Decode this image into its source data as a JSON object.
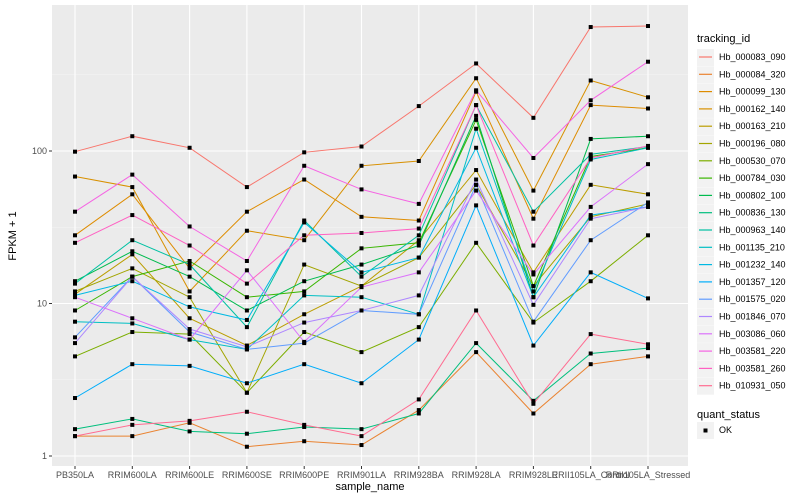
{
  "chart_data": {
    "type": "line",
    "title": "",
    "xlabel": "sample_name",
    "ylabel": "FPKM + 1",
    "yscale": "log10",
    "ylim": [
      0.9,
      800
    ],
    "yticks": [
      1,
      10,
      100
    ],
    "ytick_labels": [
      "1",
      "10",
      "100"
    ],
    "grid": true,
    "legend_position": "right",
    "categories": [
      "PB350LA",
      "RRIM600LA",
      "RRIM600LE",
      "RRIM600SE",
      "RRIM600PE",
      "RRIM901LA",
      "RRIM928BA",
      "RRIM928LA",
      "RRIM928LE",
      "RRII105LA_Control",
      "RRII105LA_Stressed"
    ],
    "legend_title": "tracking_id",
    "legend2_title": "quant_status",
    "legend2_entries": [
      "OK"
    ],
    "series": [
      {
        "name": "Hb_000083_090",
        "color": "#F8766D",
        "values": [
          99,
          125,
          105,
          58,
          98,
          107,
          197,
          375,
          165,
          650,
          660
        ]
      },
      {
        "name": "Hb_000084_320",
        "color": "#EA8331",
        "values": [
          1.35,
          1.35,
          1.65,
          1.15,
          1.25,
          1.18,
          2.0,
          4.8,
          1.9,
          4.0,
          4.5
        ]
      },
      {
        "name": "Hb_000099_130",
        "color": "#DE8C00",
        "values": [
          28,
          52,
          17,
          40,
          65,
          37,
          35,
          245,
          36,
          200,
          190
        ]
      },
      {
        "name": "Hb_000162_140",
        "color": "#D89000",
        "values": [
          68,
          58,
          12,
          30,
          26,
          80,
          86,
          300,
          55,
          290,
          225
        ]
      },
      {
        "name": "Hb_000163_210",
        "color": "#BB9D00",
        "values": [
          11.5,
          21,
          8,
          5.3,
          8.5,
          13,
          26,
          75,
          16,
          60,
          52
        ]
      },
      {
        "name": "Hb_000196_080",
        "color": "#A3A500",
        "values": [
          12,
          17,
          11,
          2.6,
          18,
          13,
          20,
          60,
          13,
          37,
          45
        ]
      },
      {
        "name": "Hb_000530_070",
        "color": "#7CAE00",
        "values": [
          4.5,
          6.5,
          6.3,
          2.6,
          6.5,
          4.8,
          7.0,
          25,
          7.5,
          14,
          28
        ]
      },
      {
        "name": "Hb_000784_030",
        "color": "#39B600",
        "values": [
          9,
          15,
          19,
          11,
          12,
          23,
          25,
          160,
          13,
          92,
          105
        ]
      },
      {
        "name": "Hb_000802_100",
        "color": "#00BB4E",
        "values": [
          14,
          22,
          15,
          9,
          14,
          18,
          24,
          170,
          11,
          120,
          125
        ]
      },
      {
        "name": "Hb_000836_130",
        "color": "#00BF7D",
        "values": [
          1.5,
          1.75,
          1.45,
          1.4,
          1.55,
          1.5,
          1.9,
          5.5,
          2.3,
          4.7,
          5.1
        ]
      },
      {
        "name": "Hb_000963_140",
        "color": "#00C1A3",
        "values": [
          13.5,
          26,
          18,
          7,
          35,
          15,
          28,
          200,
          40,
          95,
          107
        ]
      },
      {
        "name": "Hb_001135_210",
        "color": "#00BFC4",
        "values": [
          7.6,
          7.4,
          5.8,
          5,
          11.3,
          11,
          8.5,
          140,
          12,
          88,
          105
        ]
      },
      {
        "name": "Hb_001232_140",
        "color": "#00B9E3",
        "values": [
          11.3,
          14,
          9.5,
          7.8,
          34,
          16,
          20,
          105,
          11,
          38,
          43
        ]
      },
      {
        "name": "Hb_001357_120",
        "color": "#00ADFA",
        "values": [
          2.4,
          4,
          3.9,
          3,
          4,
          3,
          5.8,
          44,
          5.3,
          16,
          10.8
        ]
      },
      {
        "name": "Hb_001575_020",
        "color": "#619CFF",
        "values": [
          6,
          15,
          6.5,
          5,
          5.5,
          9,
          8.5,
          60,
          7.6,
          26,
          46
        ]
      },
      {
        "name": "Hb_001846_070",
        "color": "#AE87FF",
        "values": [
          5.5,
          15,
          6.8,
          5.2,
          7.5,
          9,
          11.3,
          65,
          9.8,
          36,
          43
        ]
      },
      {
        "name": "Hb_003086_060",
        "color": "#DB72FB",
        "values": [
          11,
          8,
          5.8,
          16.5,
          5.6,
          12.8,
          16,
          55,
          15.5,
          43,
          82
        ]
      },
      {
        "name": "Hb_003581_220",
        "color": "#F564E3",
        "values": [
          40,
          70,
          32,
          19,
          80,
          56,
          45,
          250,
          90,
          215,
          385
        ]
      },
      {
        "name": "Hb_003581_260",
        "color": "#FF61C3",
        "values": [
          25,
          38,
          24,
          13.5,
          28,
          29,
          31,
          200,
          24,
          90,
          108
        ]
      },
      {
        "name": "Hb_010931_050",
        "color": "#FF6C91",
        "values": [
          1.35,
          1.6,
          1.7,
          1.95,
          1.6,
          1.35,
          2.35,
          9,
          2.2,
          6.3,
          5.4
        ]
      }
    ]
  }
}
